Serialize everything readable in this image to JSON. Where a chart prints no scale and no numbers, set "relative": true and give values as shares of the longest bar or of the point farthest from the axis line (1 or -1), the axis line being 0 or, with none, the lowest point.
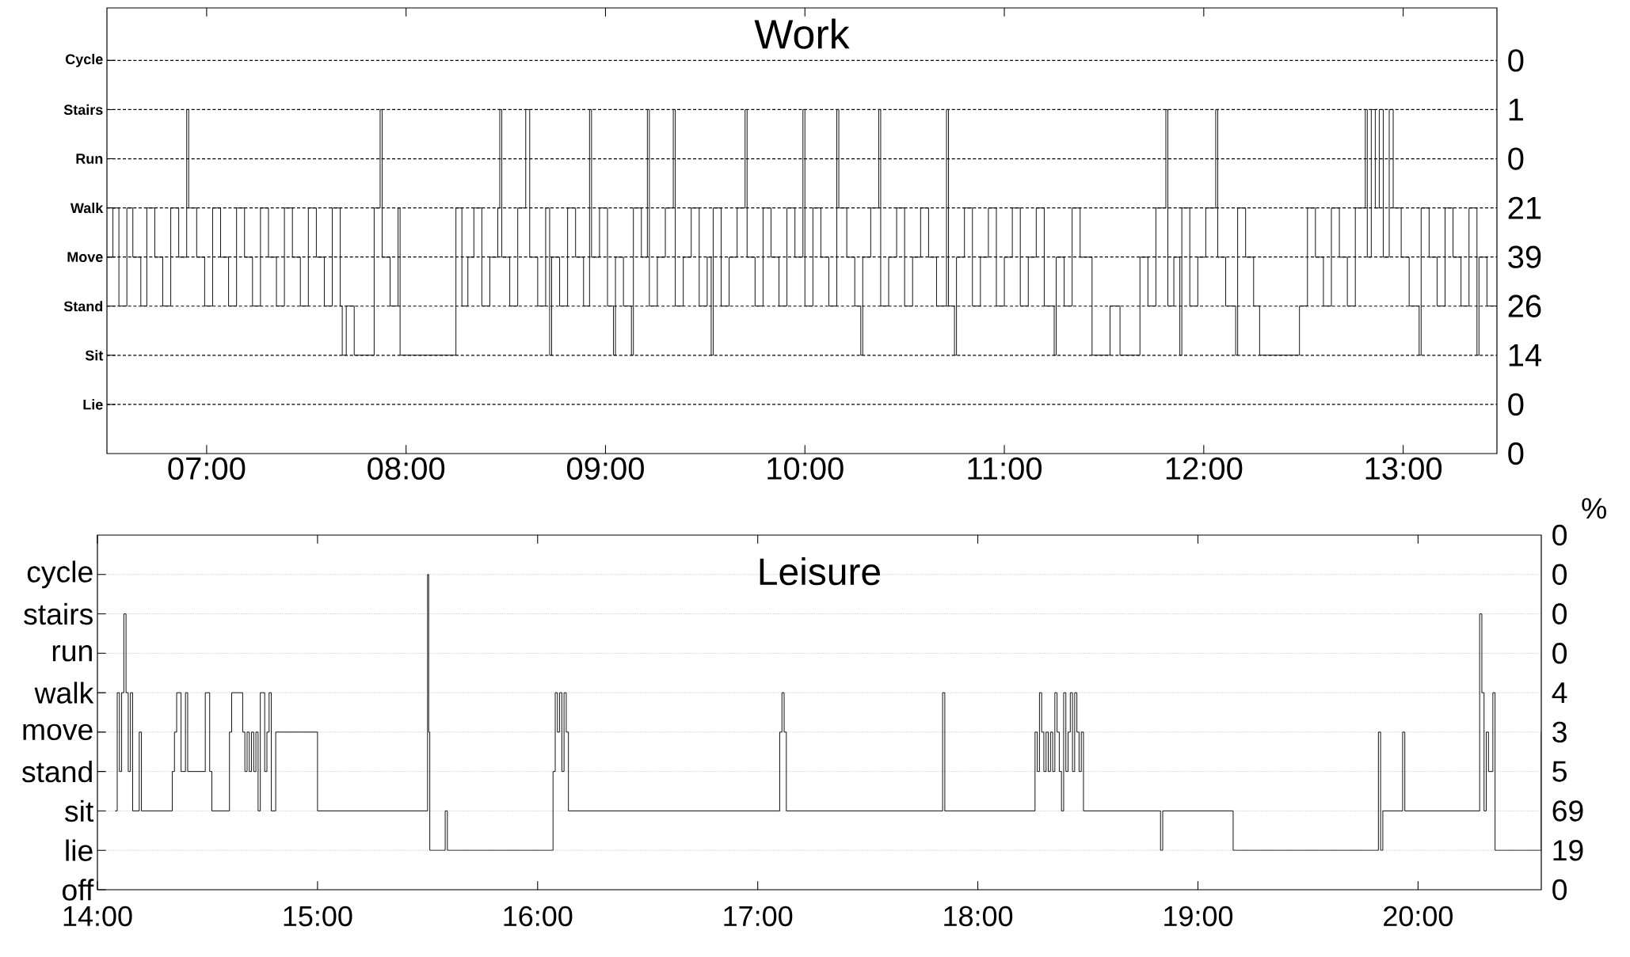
{
  "chart_data": [
    {
      "type": "step",
      "title": "Work",
      "color": "#000000",
      "grid": "y",
      "x": [
        6.5,
        6.53,
        6.56,
        6.6,
        6.63,
        6.67,
        6.7,
        6.74,
        6.78,
        6.82,
        6.86,
        6.9,
        6.91,
        6.95,
        6.99,
        7.03,
        7.07,
        7.11,
        7.15,
        7.19,
        7.23,
        7.27,
        7.31,
        7.35,
        7.39,
        7.43,
        7.47,
        7.51,
        7.55,
        7.59,
        7.63,
        7.67,
        7.68,
        7.7,
        7.74,
        7.84,
        7.87,
        7.88,
        7.92,
        7.96,
        7.97,
        8.25,
        8.28,
        8.31,
        8.34,
        8.38,
        8.42,
        8.46,
        8.47,
        8.48,
        8.52,
        8.56,
        8.6,
        8.62,
        8.66,
        8.7,
        8.72,
        8.73,
        8.77,
        8.81,
        8.85,
        8.89,
        8.92,
        8.93,
        8.97,
        9.01,
        9.04,
        9.05,
        9.09,
        9.13,
        9.14,
        9.18,
        9.21,
        9.22,
        9.26,
        9.3,
        9.34,
        9.35,
        9.39,
        9.43,
        9.47,
        9.51,
        9.53,
        9.54,
        9.58,
        9.62,
        9.66,
        9.7,
        9.71,
        9.75,
        9.79,
        9.83,
        9.87,
        9.91,
        9.95,
        9.99,
        10.0,
        10.04,
        10.08,
        10.12,
        10.16,
        10.17,
        10.21,
        10.25,
        10.28,
        10.29,
        10.33,
        10.37,
        10.38,
        10.42,
        10.46,
        10.5,
        10.54,
        10.58,
        10.62,
        10.66,
        10.71,
        10.72,
        10.75,
        10.76,
        10.8,
        10.84,
        10.88,
        10.92,
        10.96,
        11.0,
        11.04,
        11.08,
        11.12,
        11.16,
        11.2,
        11.25,
        11.26,
        11.3,
        11.34,
        11.38,
        11.44,
        11.53,
        11.58,
        11.68,
        11.72,
        11.76,
        11.81,
        11.82,
        11.85,
        11.88,
        11.89,
        11.93,
        11.97,
        12.01,
        12.06,
        12.07,
        12.11,
        12.16,
        12.17,
        12.21,
        12.25,
        12.28,
        12.48,
        12.52,
        12.56,
        12.6,
        12.64,
        12.68,
        12.72,
        12.76,
        12.81,
        12.82,
        12.84,
        12.86,
        12.88,
        12.9,
        12.93,
        12.95,
        12.99,
        13.03,
        13.08,
        13.09,
        13.13,
        13.17,
        13.21,
        13.25,
        13.29,
        13.33,
        13.37,
        13.38,
        13.42,
        13.47
      ],
      "relative": true,
      "values": [
        0.571,
        0.714,
        0.429,
        0.714,
        0.571,
        0.429,
        0.714,
        0.571,
        0.429,
        0.714,
        0.571,
        1,
        0.714,
        0.571,
        0.429,
        0.714,
        0.571,
        0.429,
        0.714,
        0.571,
        0.429,
        0.714,
        0.571,
        0.429,
        0.714,
        0.571,
        0.429,
        0.714,
        0.571,
        0.429,
        0.714,
        0.429,
        0.286,
        0.429,
        0.286,
        0.714,
        1,
        0.571,
        0.429,
        0.714,
        0.286,
        0.714,
        0.429,
        0.571,
        0.714,
        0.429,
        0.571,
        0.714,
        1,
        0.571,
        0.429,
        0.714,
        1,
        0.571,
        0.429,
        0.714,
        0.286,
        0.571,
        0.429,
        0.714,
        0.571,
        0.429,
        1,
        0.571,
        0.714,
        0.429,
        0.286,
        0.571,
        0.429,
        0.286,
        0.714,
        0.571,
        1,
        0.429,
        0.571,
        0.714,
        1,
        0.429,
        0.571,
        0.714,
        0.429,
        0.571,
        0.286,
        0.714,
        0.429,
        0.571,
        0.714,
        1,
        0.571,
        0.429,
        0.714,
        0.571,
        0.429,
        0.714,
        0.571,
        1,
        0.429,
        0.714,
        0.571,
        0.429,
        1,
        0.714,
        0.571,
        0.429,
        0.286,
        0.571,
        0.714,
        1,
        0.429,
        0.571,
        0.714,
        0.429,
        0.571,
        0.714,
        0.571,
        0.429,
        1,
        0.429,
        0.286,
        0.571,
        0.714,
        0.429,
        0.571,
        0.714,
        0.429,
        0.571,
        0.714,
        0.429,
        0.571,
        0.714,
        0.429,
        0.286,
        0.571,
        0.429,
        0.714,
        0.571,
        0.286,
        0.429,
        0.286,
        0.571,
        0.429,
        0.714,
        1,
        0.429,
        0.571,
        0.286,
        0.714,
        0.429,
        0.571,
        0.714,
        1,
        0.571,
        0.429,
        0.286,
        0.714,
        0.571,
        0.429,
        0.286,
        0.429,
        0.714,
        0.571,
        0.429,
        0.714,
        0.571,
        0.429,
        0.714,
        1,
        0.571,
        1,
        0.714,
        1,
        0.571,
        1,
        0.714,
        0.571,
        0.429,
        0.286,
        0.714,
        0.571,
        0.429,
        0.714,
        0.571,
        0.429,
        0.714,
        0.286,
        0.571,
        0.429,
        0.429
      ],
      "xlim": [
        6.5,
        13.47
      ],
      "xticks": [
        {
          "value": 7,
          "label": "07:00"
        },
        {
          "value": 8,
          "label": "08:00"
        },
        {
          "value": 9,
          "label": "09:00"
        },
        {
          "value": 10,
          "label": "10:00"
        },
        {
          "value": 11,
          "label": "11:00"
        },
        {
          "value": 12,
          "label": "12:00"
        },
        {
          "value": 13,
          "label": "13:00"
        }
      ],
      "y_categories": [
        "Cycle",
        "Stairs",
        "Run",
        "Walk",
        "Move",
        "Stand",
        "Sit",
        "Lie",
        null
      ],
      "y2_categories": [
        "0",
        "1",
        "0",
        "21",
        "39",
        "26",
        "14",
        "0",
        "0"
      ]
    },
    {
      "type": "step",
      "title": "Leisure",
      "color": "#000000",
      "grid": "y",
      "y2label": "%",
      "x": [
        14.08,
        14.09,
        14.1,
        14.11,
        14.12,
        14.13,
        14.14,
        14.15,
        14.16,
        14.19,
        14.2,
        14.34,
        14.35,
        14.36,
        14.38,
        14.4,
        14.41,
        14.49,
        14.51,
        14.52,
        14.6,
        14.61,
        14.66,
        14.67,
        14.68,
        14.69,
        14.7,
        14.71,
        14.72,
        14.73,
        14.74,
        14.76,
        14.77,
        14.78,
        14.79,
        14.81,
        15.0,
        15.5,
        15.505,
        15.51,
        15.58,
        15.59,
        16.07,
        16.08,
        16.09,
        16.1,
        16.11,
        16.12,
        16.13,
        16.14,
        17.1,
        17.11,
        17.12,
        17.13,
        17.84,
        17.85,
        18.26,
        18.27,
        18.28,
        18.29,
        18.3,
        18.31,
        18.32,
        18.33,
        18.34,
        18.35,
        18.36,
        18.37,
        18.38,
        18.39,
        18.4,
        18.41,
        18.42,
        18.43,
        18.44,
        18.45,
        18.46,
        18.47,
        18.48,
        18.83,
        18.84,
        19.16,
        19.82,
        19.83,
        19.84,
        19.93,
        19.94,
        20.28,
        20.29,
        20.3,
        20.31,
        20.32,
        20.34,
        20.35,
        20.56
      ],
      "relative": true,
      "values": [
        0.25,
        0.625,
        0.375,
        0.625,
        0.875,
        0.625,
        0.375,
        0.625,
        0.25,
        0.5,
        0.25,
        0.375,
        0.5,
        0.625,
        0.375,
        0.625,
        0.375,
        0.625,
        0.375,
        0.25,
        0.5,
        0.625,
        0.5,
        0.375,
        0.5,
        0.375,
        0.5,
        0.375,
        0.5,
        0.25,
        0.625,
        0.375,
        0.5,
        0.625,
        0.25,
        0.5,
        0.25,
        1,
        0.5,
        0.125,
        0.25,
        0.125,
        0.375,
        0.625,
        0.5,
        0.625,
        0.375,
        0.625,
        0.5,
        0.25,
        0.5,
        0.625,
        0.5,
        0.25,
        0.625,
        0.25,
        0.5,
        0.375,
        0.625,
        0.5,
        0.375,
        0.5,
        0.375,
        0.5,
        0.375,
        0.625,
        0.5,
        0.375,
        0.25,
        0.625,
        0.375,
        0.5,
        0.625,
        0.375,
        0.625,
        0.5,
        0.375,
        0.5,
        0.25,
        0.125,
        0.25,
        0.125,
        0.5,
        0.125,
        0.25,
        0.5,
        0.25,
        0.875,
        0.625,
        0.25,
        0.5,
        0.375,
        0.625,
        0.125,
        0.5
      ],
      "xlim": [
        14,
        20.56
      ],
      "xticks": [
        {
          "value": 14,
          "label": "14:00"
        },
        {
          "value": 15,
          "label": "15:00"
        },
        {
          "value": 16,
          "label": "16:00"
        },
        {
          "value": 17,
          "label": "17:00"
        },
        {
          "value": 18,
          "label": "18:00"
        },
        {
          "value": 19,
          "label": "19:00"
        },
        {
          "value": 20,
          "label": "20:00"
        }
      ],
      "y_categories": [
        null,
        "cycle",
        "stairs",
        "run",
        "walk",
        "move",
        "stand",
        "sit",
        "lie",
        "off"
      ],
      "y2_categories": [
        "0",
        "0",
        "0",
        "0",
        "4",
        "3",
        "5",
        "69",
        "19",
        "0"
      ]
    }
  ]
}
